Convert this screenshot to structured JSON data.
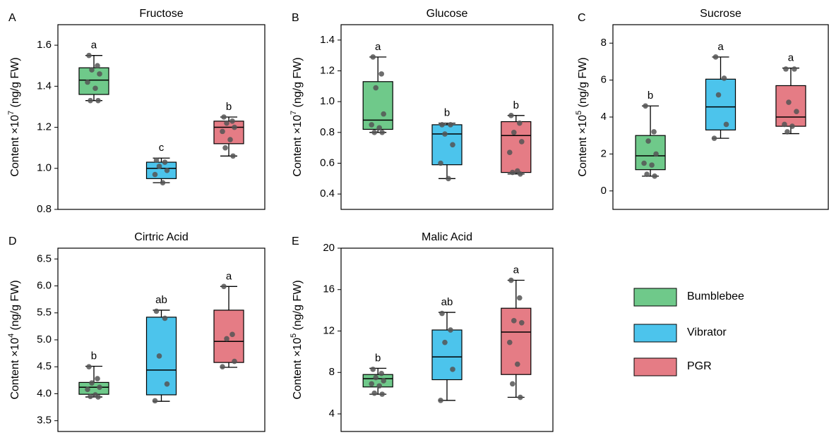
{
  "chart_data": [
    {
      "type": "box",
      "panel": "A",
      "title": "Fructose",
      "ylabel": {
        "prefix": "Content ×10",
        "exponent": "7",
        "suffix": " (ng/g FW)"
      },
      "ylim": [
        0.8,
        1.7
      ],
      "yticks": [
        0.8,
        {
          "value": 1,
          "label": "1.0"
        },
        1.2,
        1.4,
        1.6
      ],
      "groups": [
        {
          "box": {
            "min": 1.33,
            "q1": 1.36,
            "median": 1.43,
            "q3": 1.49,
            "max": 1.55
          },
          "points": [
            1.55,
            1.5,
            1.48,
            1.46,
            1.42,
            1.39,
            1.33,
            1.33
          ],
          "letter": "a"
        },
        {
          "box": {
            "min": 0.93,
            "q1": 0.95,
            "median": 1.0,
            "q3": 1.03,
            "max": 1.05
          },
          "points": [
            1.04,
            1.03,
            1.01,
            0.99,
            0.97,
            0.93
          ],
          "letter": "c"
        },
        {
          "box": {
            "min": 1.06,
            "q1": 1.12,
            "median": 1.2,
            "q3": 1.23,
            "max": 1.25
          },
          "points": [
            1.25,
            1.23,
            1.22,
            1.2,
            1.18,
            1.14,
            1.1,
            1.06
          ],
          "letter": "b"
        }
      ]
    },
    {
      "type": "box",
      "panel": "B",
      "title": "Glucose",
      "ylabel": {
        "prefix": "Content ×10",
        "exponent": "7",
        "suffix": " (ng/g FW)"
      },
      "ylim": [
        0.3,
        1.5
      ],
      "yticks": [
        0.4,
        0.6,
        0.8,
        {
          "value": 1,
          "label": "1.0"
        },
        1.2,
        1.4
      ],
      "groups": [
        {
          "box": {
            "min": 0.8,
            "q1": 0.82,
            "median": 0.88,
            "q3": 1.13,
            "max": 1.29
          },
          "points": [
            1.29,
            1.18,
            1.09,
            0.92,
            0.85,
            0.83,
            0.8,
            0.8
          ],
          "letter": "a"
        },
        {
          "box": {
            "min": 0.5,
            "q1": 0.59,
            "median": 0.79,
            "q3": 0.85,
            "max": 0.86
          },
          "points": [
            0.85,
            0.85,
            0.79,
            0.72,
            0.6,
            0.5
          ],
          "letter": "b"
        },
        {
          "box": {
            "min": 0.53,
            "q1": 0.54,
            "median": 0.78,
            "q3": 0.87,
            "max": 0.91
          },
          "points": [
            0.91,
            0.86,
            0.8,
            0.74,
            0.67,
            0.55,
            0.54,
            0.53
          ],
          "letter": "b"
        }
      ]
    },
    {
      "type": "box",
      "panel": "C",
      "title": "Sucrose",
      "ylabel": {
        "prefix": "Content ×10",
        "exponent": "5",
        "suffix": " (ng/g FW)"
      },
      "ylim": [
        -1,
        9
      ],
      "yticks": [
        0,
        2,
        4,
        6,
        8
      ],
      "groups": [
        {
          "box": {
            "min": 0.8,
            "q1": 1.15,
            "median": 1.9,
            "q3": 3.0,
            "max": 4.6
          },
          "points": [
            4.6,
            3.2,
            2.7,
            2.0,
            1.5,
            1.4,
            0.9,
            0.8
          ],
          "letter": "b"
        },
        {
          "box": {
            "min": 2.85,
            "q1": 3.3,
            "median": 4.55,
            "q3": 6.05,
            "max": 7.25
          },
          "points": [
            7.25,
            6.1,
            5.2,
            3.6,
            2.85
          ],
          "letter": "a"
        },
        {
          "box": {
            "min": 3.1,
            "q1": 3.5,
            "median": 4.0,
            "q3": 5.7,
            "max": 6.65
          },
          "points": [
            6.6,
            6.6,
            4.8,
            4.3,
            3.6,
            3.5,
            3.2
          ],
          "letter": "a"
        }
      ]
    },
    {
      "type": "box",
      "panel": "D",
      "title": "Cirtric Acid",
      "ylabel": {
        "prefix": "Content ×10",
        "exponent": "4",
        "suffix": " (ng/g FW)"
      },
      "ylim": [
        3.3,
        6.7
      ],
      "yticks": [
        3.5,
        {
          "value": 4,
          "label": "4.0"
        },
        4.5,
        {
          "value": 5,
          "label": "5.0"
        },
        5.5,
        {
          "value": 6,
          "label": "6.0"
        },
        6.5
      ],
      "groups": [
        {
          "box": {
            "min": 3.94,
            "q1": 3.99,
            "median": 4.12,
            "q3": 4.21,
            "max": 4.51
          },
          "points": [
            4.5,
            4.28,
            4.2,
            4.12,
            4.08,
            3.98,
            3.95,
            3.94
          ],
          "letter": "b"
        },
        {
          "box": {
            "min": 3.86,
            "q1": 3.98,
            "median": 4.44,
            "q3": 5.42,
            "max": 5.55
          },
          "points": [
            5.53,
            5.4,
            4.7,
            4.18,
            3.87
          ],
          "letter": "ab"
        },
        {
          "box": {
            "min": 4.49,
            "q1": 4.58,
            "median": 4.97,
            "q3": 5.55,
            "max": 5.99
          },
          "points": [
            5.99,
            5.1,
            5.02,
            4.6,
            4.5
          ],
          "letter": "a"
        }
      ]
    },
    {
      "type": "box",
      "panel": "E",
      "title": "Malic Acid",
      "ylabel": {
        "prefix": "Content ×10",
        "exponent": "5",
        "suffix": " (ng/g FW)"
      },
      "ylim": [
        2.3,
        20
      ],
      "yticks": [
        4,
        8,
        12,
        16,
        20
      ],
      "groups": [
        {
          "box": {
            "min": 5.9,
            "q1": 6.6,
            "median": 7.4,
            "q3": 7.8,
            "max": 8.4
          },
          "points": [
            8.3,
            7.9,
            7.5,
            7.2,
            6.9,
            6.7,
            6.0,
            5.9
          ],
          "letter": "b"
        },
        {
          "box": {
            "min": 5.3,
            "q1": 7.3,
            "median": 9.5,
            "q3": 12.1,
            "max": 13.8
          },
          "points": [
            13.7,
            12.1,
            10.9,
            8.3,
            5.3
          ],
          "letter": "ab"
        },
        {
          "box": {
            "min": 5.6,
            "q1": 7.8,
            "median": 11.9,
            "q3": 14.2,
            "max": 16.9
          },
          "points": [
            16.9,
            15.2,
            13.0,
            12.8,
            10.9,
            8.8,
            6.9,
            5.6
          ],
          "letter": "a"
        }
      ]
    }
  ],
  "legend": {
    "items": [
      {
        "name": "Bumblebee",
        "color": "#6fc98a"
      },
      {
        "name": "Vibrator",
        "color": "#4cc4ec"
      },
      {
        "name": "PGR",
        "color": "#e57c85"
      }
    ]
  }
}
